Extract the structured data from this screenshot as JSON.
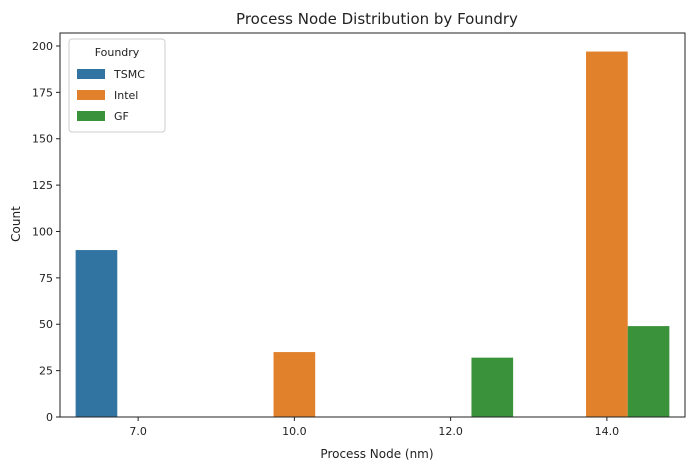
{
  "chart_data": {
    "type": "bar",
    "title": "Process Node Distribution by Foundry",
    "xlabel": "Process Node (nm)",
    "ylabel": "Count",
    "categories": [
      "7.0",
      "10.0",
      "12.0",
      "14.0"
    ],
    "ylim": [
      0,
      207
    ],
    "yticks": [
      0,
      25,
      50,
      75,
      100,
      125,
      150,
      175,
      200
    ],
    "grid": false,
    "legend": {
      "title": "Foundry",
      "placement": "top-left"
    },
    "series": [
      {
        "name": "TSMC",
        "color": "#3274a1",
        "values": [
          90,
          0,
          0,
          0
        ]
      },
      {
        "name": "Intel",
        "color": "#e1812c",
        "values": [
          0,
          35,
          0,
          197
        ]
      },
      {
        "name": "GF",
        "color": "#3a923a",
        "values": [
          0,
          0,
          32,
          49
        ]
      }
    ]
  }
}
